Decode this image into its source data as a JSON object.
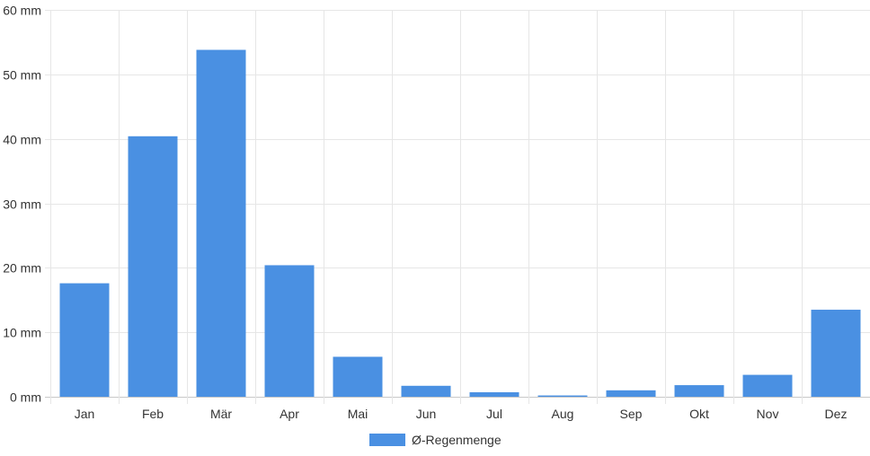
{
  "chart_data": {
    "type": "bar",
    "categories": [
      "Jan",
      "Feb",
      "Mär",
      "Apr",
      "Mai",
      "Jun",
      "Jul",
      "Aug",
      "Sep",
      "Okt",
      "Nov",
      "Dez"
    ],
    "series": [
      {
        "name": "Ø-Regenmenge",
        "color": "#4a90e2",
        "values": [
          17.6,
          40.4,
          53.8,
          20.4,
          6.2,
          1.7,
          0.7,
          0.2,
          1.0,
          1.8,
          3.4,
          13.5
        ]
      }
    ],
    "ylim": [
      0,
      60
    ],
    "yticks": [
      "0 mm",
      "10 mm",
      "20 mm",
      "30 mm",
      "40 mm",
      "50 mm",
      "60 mm"
    ],
    "ytick_values": [
      0,
      10,
      20,
      30,
      40,
      50,
      60
    ],
    "grid": true,
    "legend_position": "bottom"
  }
}
